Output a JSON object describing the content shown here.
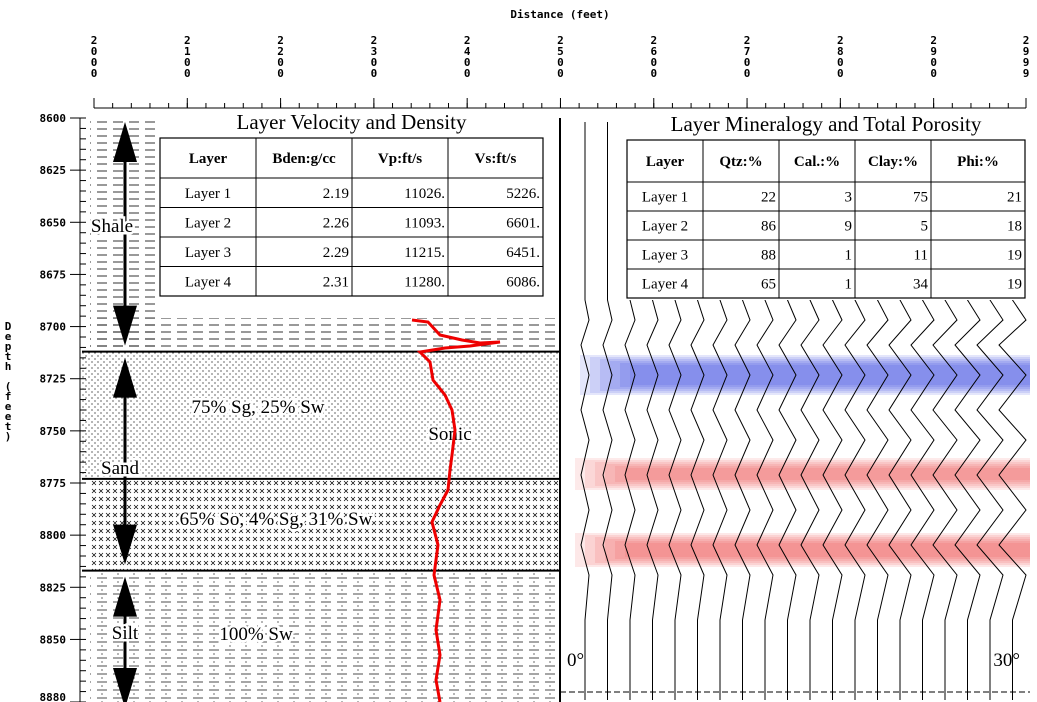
{
  "distance_axis": {
    "title": "Distance (feet)",
    "range": [
      2000,
      2999
    ],
    "ticks": [
      2000,
      2100,
      2200,
      2300,
      2400,
      2500,
      2600,
      2700,
      2800,
      2900,
      2999
    ]
  },
  "depth_axis": {
    "title": "Depth (feet)",
    "range": [
      8600,
      8880
    ],
    "ticks": [
      8600,
      8625,
      8650,
      8675,
      8700,
      8725,
      8750,
      8775,
      8800,
      8825,
      8850,
      8880
    ]
  },
  "boundaries": [
    8712,
    8773,
    8817
  ],
  "velocity_table": {
    "title": "Layer Velocity and Density",
    "header": [
      "Layer",
      "Bden:g/cc",
      "Vp:ft/s",
      "Vs:ft/s"
    ],
    "rows": [
      [
        "Layer 1",
        "2.19",
        "11026.",
        "5226."
      ],
      [
        "Layer 2",
        "2.26",
        "11093.",
        "6601."
      ],
      [
        "Layer 3",
        "2.29",
        "11215.",
        "6451."
      ],
      [
        "Layer 4",
        "2.31",
        "11280.",
        "6086."
      ]
    ]
  },
  "mineralogy_table": {
    "title": "Layer Mineralogy and Total Porosity",
    "header": [
      "Layer",
      "Qtz:%",
      "Cal.:%",
      "Clay:%",
      "Phi:%"
    ],
    "rows": [
      [
        "Layer 1",
        "22",
        "3",
        "75",
        "21"
      ],
      [
        "Layer 2",
        "86",
        "9",
        "5",
        "18"
      ],
      [
        "Layer 3",
        "88",
        "1",
        "11",
        "19"
      ],
      [
        "Layer 4",
        "65",
        "1",
        "34",
        "19"
      ]
    ]
  },
  "annotations": [
    "Shale",
    "Sand",
    "Silt",
    "75% Sg, 25% Sw",
    "65% So, 4% Sg, 31% Sw",
    "100% Sw",
    "Sonic",
    "0°",
    "30°"
  ]
}
